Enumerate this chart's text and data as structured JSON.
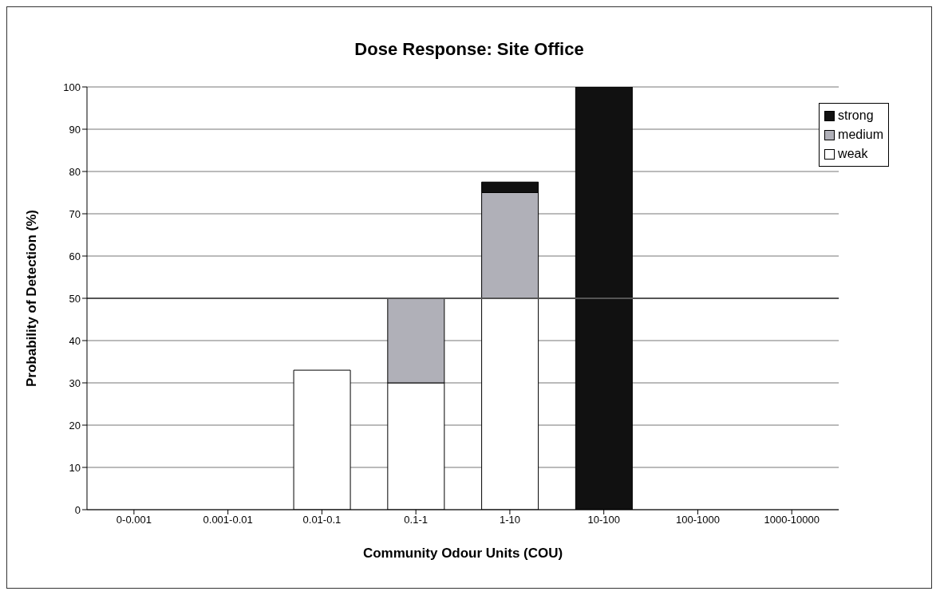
{
  "chart_data": {
    "type": "bar",
    "title": "Dose Response: Site Office",
    "xlabel": "Community Odour Units (COU)",
    "ylabel": "Probability of Detection (%)",
    "categories": [
      "0-0.001",
      "0.001-0.01",
      "0.01-0.1",
      "0.1-1",
      "1-10",
      "10-100",
      "100-1000",
      "1000-10000"
    ],
    "series": [
      {
        "name": "weak",
        "color": "#ffffff",
        "values": [
          0,
          0,
          33,
          30,
          50,
          0,
          0,
          0
        ]
      },
      {
        "name": "medium",
        "color": "#b0b0b8",
        "values": [
          0,
          0,
          0,
          20,
          25,
          0,
          0,
          0
        ]
      },
      {
        "name": "strong",
        "color": "#111111",
        "values": [
          0,
          0,
          0,
          0,
          2.5,
          100,
          0,
          0
        ]
      }
    ],
    "stacked": true,
    "ylim": [
      0,
      100
    ],
    "yticks": [
      0,
      10,
      20,
      30,
      40,
      50,
      60,
      70,
      80,
      90,
      100
    ],
    "grid": "y",
    "legend": "top right",
    "ref_lines": [
      {
        "axis": "y",
        "value": 50,
        "color": "#555555"
      }
    ]
  }
}
